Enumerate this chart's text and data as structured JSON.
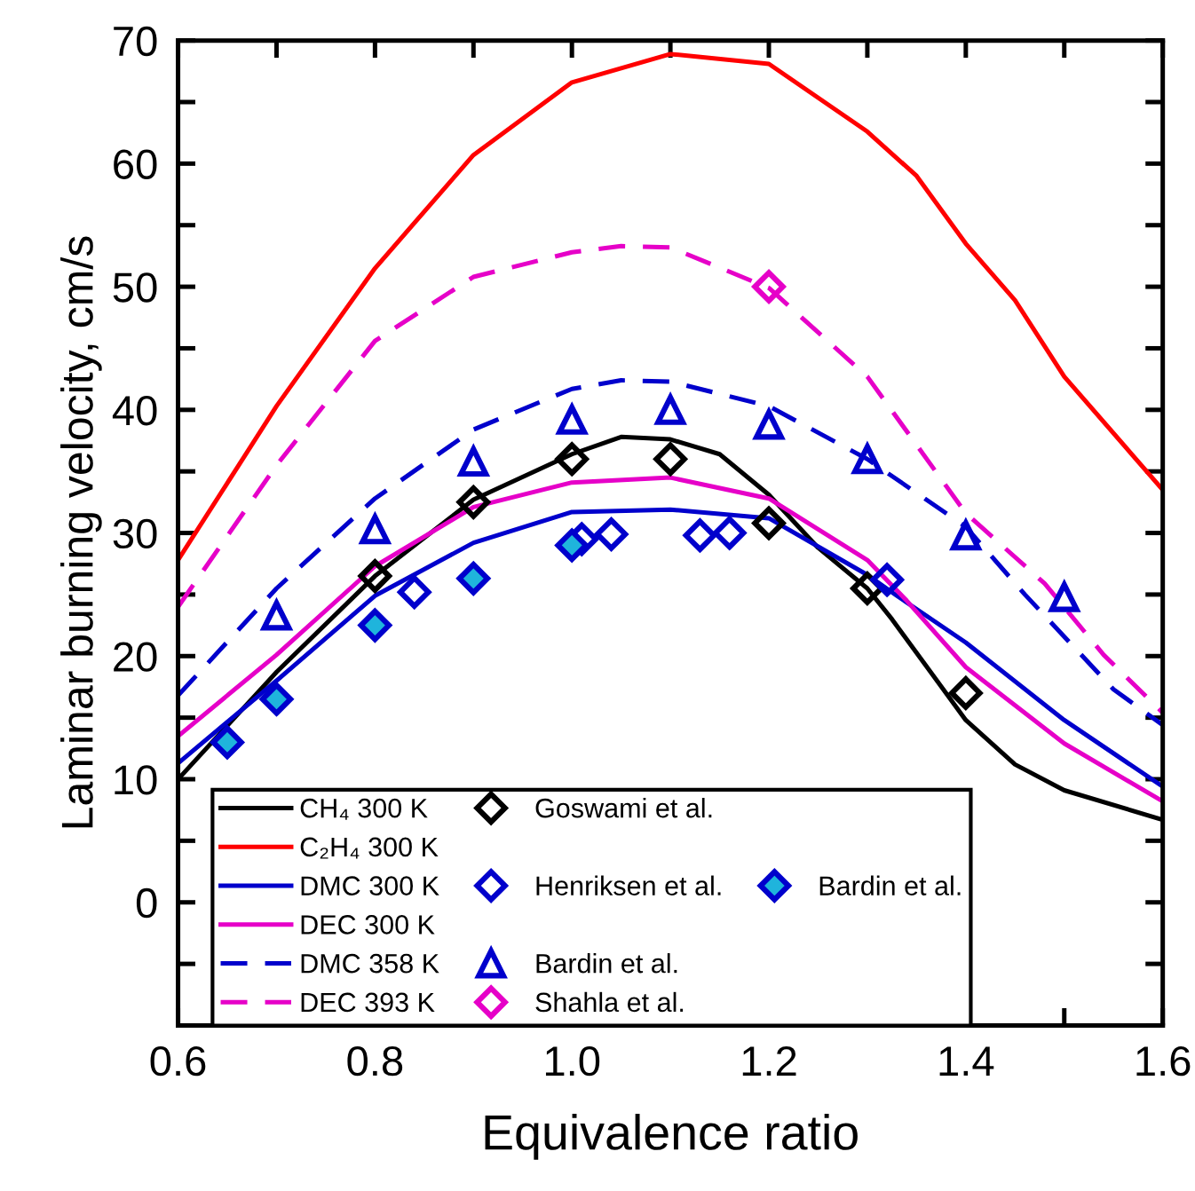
{
  "chart_data": {
    "type": "line",
    "xlabel": "Equivalence ratio",
    "ylabel": "Laminar burning velocity, cm/s",
    "xlim": [
      0.6,
      1.6
    ],
    "ylim": [
      -10,
      70
    ],
    "xticks": [
      0.6,
      {
        "value": 0.7,
        "label": null
      },
      0.8,
      {
        "value": 0.9,
        "label": null
      },
      "1.0",
      {
        "value": 1.1,
        "label": null
      },
      1.2,
      {
        "value": 1.3,
        "label": null
      },
      1.4,
      {
        "value": 1.5,
        "label": null
      },
      1.6
    ],
    "yticks": [
      {
        "value": -10,
        "label": null
      },
      {
        "value": -5,
        "label": null
      },
      0,
      {
        "value": 5,
        "label": null
      },
      10,
      {
        "value": 15,
        "label": null
      },
      20,
      {
        "value": 25,
        "label": null
      },
      30,
      {
        "value": 35,
        "label": null
      },
      40,
      {
        "value": 45,
        "label": null
      },
      50,
      {
        "value": 55,
        "label": null
      },
      60,
      {
        "value": 65,
        "label": null
      },
      70
    ],
    "grid": false,
    "legend": "bottom left",
    "series": [
      {
        "name": "CH₄ 300 K",
        "color": "#000000",
        "line_style": "solid",
        "x": [
          0.6,
          0.7,
          0.8,
          0.9,
          1.0,
          1.05,
          1.1,
          1.15,
          1.2,
          1.25,
          1.3,
          1.325,
          1.4,
          1.45,
          1.5,
          1.6
        ],
        "values": [
          10,
          18.7,
          26.5,
          32.7,
          36.4,
          37.8,
          37.6,
          36.4,
          33.1,
          28.8,
          25.5,
          23,
          14.8,
          11.2,
          9.1,
          6.7
        ]
      },
      {
        "name": "C₂H₄ 300 K",
        "color": "#ff0000",
        "line_style": "solid",
        "x": [
          0.6,
          0.7,
          0.8,
          0.9,
          1.0,
          1.1,
          1.2,
          1.3,
          1.35,
          1.4,
          1.45,
          1.5,
          1.6
        ],
        "values": [
          27.8,
          40.3,
          51.5,
          60.7,
          66.6,
          68.9,
          68.1,
          62.6,
          59,
          53.5,
          48.9,
          42.7,
          33.5
        ]
      },
      {
        "name": "DMC 300 K",
        "color": "#0000cc",
        "line_style": "solid",
        "x": [
          0.6,
          0.7,
          0.8,
          0.9,
          1.0,
          1.1,
          1.2,
          1.3,
          1.33,
          1.4,
          1.5,
          1.6
        ],
        "values": [
          11.3,
          18,
          24.9,
          29.2,
          31.7,
          31.9,
          31.2,
          26.6,
          24.9,
          21.1,
          14.8,
          9.4
        ]
      },
      {
        "name": "DEC 300 K",
        "color": "#e600c8",
        "line_style": "solid",
        "x": [
          0.6,
          0.7,
          0.8,
          0.9,
          1.0,
          1.1,
          1.2,
          1.3,
          1.34,
          1.4,
          1.5,
          1.6
        ],
        "values": [
          13.5,
          20.1,
          27.3,
          32.1,
          34.1,
          34.5,
          32.8,
          27.8,
          24.5,
          19.1,
          12.9,
          8.2
        ]
      },
      {
        "name": "DMC 358 K",
        "color": "#0000cc",
        "line_style": "dashed",
        "x": [
          0.6,
          0.7,
          0.8,
          0.9,
          1.0,
          1.05,
          1.1,
          1.2,
          1.3,
          1.4,
          1.46,
          1.55,
          1.6
        ],
        "values": [
          16.8,
          25.5,
          32.8,
          38.4,
          41.7,
          42.4,
          42.3,
          40.3,
          36,
          30.5,
          25,
          17.3,
          14.4
        ]
      },
      {
        "name": "DEC 393 K",
        "color": "#e600c8",
        "line_style": "dashed",
        "x": [
          0.6,
          0.7,
          0.8,
          0.9,
          1.0,
          1.05,
          1.1,
          1.2,
          1.3,
          1.4,
          1.48,
          1.54,
          1.6
        ],
        "values": [
          24,
          35.5,
          45.6,
          50.8,
          52.8,
          53.3,
          53.2,
          49.9,
          42.7,
          31.6,
          25.9,
          20.1,
          15.4
        ]
      },
      {
        "name": "Goswami et al.",
        "type": "scatter",
        "marker": "diamond",
        "color": "#000000",
        "x": [
          0.8,
          0.9,
          1.0,
          1.1,
          1.2,
          1.3,
          1.4
        ],
        "values": [
          26.5,
          32.5,
          36,
          36,
          30.8,
          25.5,
          17
        ]
      },
      {
        "name": "Henriksen et al.",
        "type": "scatter",
        "marker": "diamond",
        "color": "#0000cc",
        "x": [
          0.84,
          1.01,
          1.04,
          1.13,
          1.16,
          1.32
        ],
        "values": [
          25.2,
          29.5,
          29.9,
          29.8,
          30,
          26.2
        ]
      },
      {
        "name": "Bardin et al.",
        "type": "scatter",
        "marker": "triangle",
        "color": "#0000cc",
        "x": [
          0.7,
          0.8,
          0.9,
          1.0,
          1.1,
          1.2,
          1.3,
          1.4,
          1.5
        ],
        "values": [
          23.3,
          30.3,
          35.8,
          39.2,
          40,
          38.8,
          36,
          29.8,
          24.8
        ]
      },
      {
        "name": "Shahla et al.",
        "type": "scatter",
        "marker": "diamond",
        "color": "#e600c8",
        "x": [
          1.2
        ],
        "values": [
          50
        ]
      },
      {
        "name": "Bardin et al.",
        "type": "scatter",
        "marker": "diamond",
        "color": "#0000cc",
        "colors": [
          "#1fb4dc",
          "#1fb4dc",
          "#1fb4dc",
          "#1fb4dc",
          "#1fb4dc"
        ],
        "x": [
          0.65,
          0.7,
          0.8,
          0.9,
          1.0
        ],
        "values": [
          13,
          16.5,
          22.5,
          26.3,
          29
        ]
      }
    ]
  }
}
